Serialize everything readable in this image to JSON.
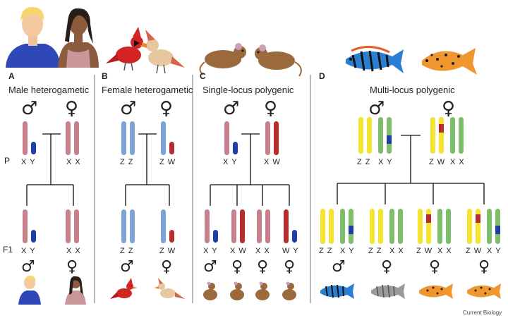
{
  "colors": {
    "pink": "#c7808c",
    "blue_light": "#7da4d4",
    "blue_dark": "#1f3fa8",
    "red_dark": "#b72c2c",
    "yellow": "#f2e42f",
    "green": "#7dbe6a"
  },
  "generation_labels": {
    "parental": "P",
    "filial": "F1"
  },
  "panels": {
    "a": {
      "letter": "A",
      "title": "Male heterogametic",
      "parent_male": "X Y",
      "parent_female": "X X",
      "offspring": [
        "X Y",
        "X X"
      ],
      "male_symbol": "♂",
      "female_symbol": "♀"
    },
    "b": {
      "letter": "B",
      "title": "Female heterogametic",
      "parent_male": "Z Z",
      "parent_female": "Z W",
      "offspring": [
        "Z Z",
        "Z W"
      ]
    },
    "c": {
      "letter": "C",
      "title": "Single-locus polygenic",
      "parent_male": "X Y",
      "parent_female": "X W",
      "offspring": [
        "X Y",
        "X W",
        "X X",
        "W Y"
      ]
    },
    "d": {
      "letter": "D",
      "title": "Multi-locus polygenic",
      "parent_male_a": "Z Z",
      "parent_male_b": "X Y",
      "parent_female_a": "Z W",
      "parent_female_b": "X X",
      "offspring": [
        [
          "Z Z",
          "X Y"
        ],
        [
          "Z Z",
          "X X"
        ],
        [
          "Z W",
          "X X"
        ],
        [
          "Z W",
          "X Y"
        ]
      ]
    }
  },
  "credit": "Current Biology"
}
